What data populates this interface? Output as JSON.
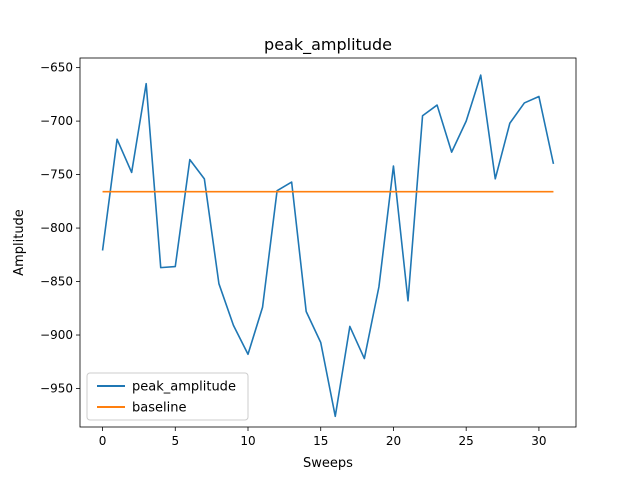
{
  "chart_data": {
    "type": "line",
    "title": "peak_amplitude",
    "xlabel": "Sweeps",
    "ylabel": "Amplitude",
    "xlim": [
      -1.55,
      32.55
    ],
    "ylim": [
      -986,
      -641
    ],
    "xticks": [
      0,
      5,
      10,
      15,
      20,
      25,
      30
    ],
    "yticks": [
      -950,
      -900,
      -850,
      -800,
      -750,
      -700,
      -650
    ],
    "x": [
      0,
      1,
      2,
      3,
      4,
      5,
      6,
      7,
      8,
      9,
      10,
      11,
      12,
      13,
      14,
      15,
      16,
      17,
      18,
      19,
      20,
      21,
      22,
      23,
      24,
      25,
      26,
      27,
      28,
      29,
      30,
      31
    ],
    "series": [
      {
        "name": "peak_amplitude",
        "color": "#1f77b4",
        "values": [
          -821,
          -717,
          -748,
          -665,
          -837,
          -836,
          -736,
          -754,
          -852,
          -891,
          -918,
          -874,
          -765,
          -757,
          -878,
          -907,
          -976,
          -892,
          -922,
          -855,
          -742,
          -868,
          -695,
          -685,
          -729,
          -700,
          -657,
          -754,
          -702,
          -683,
          -677,
          -740
        ]
      },
      {
        "name": "baseline",
        "color": "#ff7f0e",
        "values": [
          -766,
          -766,
          -766,
          -766,
          -766,
          -766,
          -766,
          -766,
          -766,
          -766,
          -766,
          -766,
          -766,
          -766,
          -766,
          -766,
          -766,
          -766,
          -766,
          -766,
          -766,
          -766,
          -766,
          -766,
          -766,
          -766,
          -766,
          -766,
          -766,
          -766,
          -766,
          -766
        ]
      }
    ],
    "legend_position": "lower-left",
    "grid": false
  }
}
